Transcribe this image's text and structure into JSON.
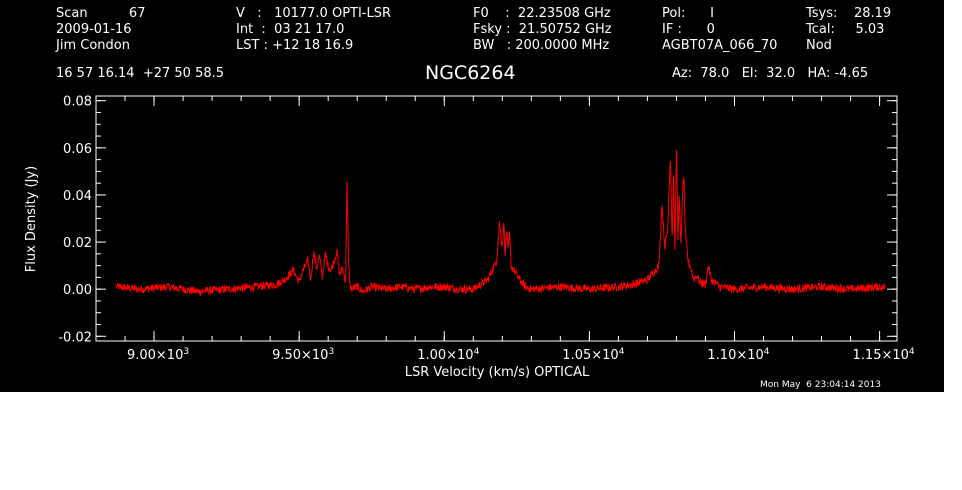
{
  "header": {
    "col1": [
      "Scan          67",
      "2009-01-16",
      "Jim Condon"
    ],
    "col2": [
      "V   :   10177.0 OPTI-LSR",
      "Int  :  03 21 17.0",
      "LST : +12 18 16.9"
    ],
    "col3": [
      "F0    :  22.23508 GHz",
      "Fsky :  21.50752 GHz",
      "BW   : 200.0000 MHz"
    ],
    "col4": [
      "Pol:      I",
      "IF :      0",
      "AGBT07A_066_70"
    ],
    "col5": [
      "Tsys:    28.19",
      "Tcal:     5.03",
      "Nod"
    ],
    "coords": "16 57 16.14  +27 50 58.5",
    "source": "NGC6264",
    "azel": "Az:  78.0   El:  32.0   HA: -4.65"
  },
  "timestamp": "Mon May  6 23:04:14 2013",
  "colors": {
    "background": "#000000",
    "axes": "#ffffff",
    "trace": "#ff0000"
  },
  "chart_data": {
    "type": "line",
    "title": "NGC6264",
    "xlabel": "LSR Velocity (km/s) OPTICAL",
    "ylabel": "Flux Density (Jy)",
    "xlim": [
      8800,
      11560
    ],
    "ylim": [
      -0.022,
      0.082
    ],
    "xticks": [
      {
        "value": 9000,
        "mantissa": "9.00×10",
        "exp": "3"
      },
      {
        "value": 9500,
        "mantissa": "9.50×10",
        "exp": "3"
      },
      {
        "value": 10000,
        "mantissa": "1.00×10",
        "exp": "4"
      },
      {
        "value": 10500,
        "mantissa": "1.05×10",
        "exp": "4"
      },
      {
        "value": 11000,
        "mantissa": "1.10×10",
        "exp": "4"
      },
      {
        "value": 11500,
        "mantissa": "1.15×10",
        "exp": "4"
      }
    ],
    "yticks": [
      {
        "value": -0.02,
        "label": "-0.02"
      },
      {
        "value": 0.0,
        "label": "0.00"
      },
      {
        "value": 0.02,
        "label": "0.02"
      },
      {
        "value": 0.04,
        "label": "0.04"
      },
      {
        "value": 0.06,
        "label": "0.06"
      },
      {
        "value": 0.08,
        "label": "0.08"
      }
    ],
    "grid": false,
    "series": [
      {
        "x": [
          8870,
          8950,
          9050,
          9150,
          9250,
          9350,
          9420,
          9450,
          9480,
          9500,
          9510,
          9530,
          9540,
          9550,
          9560,
          9570,
          9580,
          9590,
          9600,
          9610,
          9620,
          9630,
          9640,
          9650,
          9660,
          9665,
          9670,
          9675,
          9680,
          9700,
          9720,
          9750,
          9800,
          9850,
          9900,
          9950,
          10000,
          10050,
          10100,
          10150,
          10180,
          10190,
          10200,
          10205,
          10210,
          10215,
          10220,
          10225,
          10230,
          10240,
          10250,
          10260,
          10280,
          10300,
          10400,
          10500,
          10600,
          10650,
          10700,
          10740,
          10750,
          10760,
          10770,
          10775,
          10780,
          10785,
          10790,
          10795,
          10800,
          10805,
          10810,
          10815,
          10820,
          10825,
          10830,
          10840,
          10850,
          10860,
          10870,
          10880,
          10900,
          10910,
          10920,
          10950,
          11000,
          11100,
          11200,
          11300,
          11400,
          11500,
          11520
        ],
        "y": [
          0.001,
          0.0,
          0.001,
          -0.001,
          0.0,
          0.001,
          0.002,
          0.004,
          0.008,
          0.003,
          0.007,
          0.012,
          0.004,
          0.016,
          0.009,
          0.014,
          0.005,
          0.015,
          0.01,
          0.008,
          0.012,
          0.016,
          0.006,
          0.009,
          0.003,
          0.047,
          0.012,
          0.002,
          0.0,
          0.001,
          -0.001,
          0.001,
          0.0,
          0.001,
          0.0,
          0.001,
          0.001,
          0.0,
          0.0,
          0.004,
          0.012,
          0.028,
          0.018,
          0.029,
          0.014,
          0.026,
          0.016,
          0.024,
          0.01,
          0.008,
          0.006,
          0.004,
          0.001,
          0.0,
          0.001,
          0.0,
          0.001,
          0.002,
          0.004,
          0.01,
          0.037,
          0.018,
          0.025,
          0.045,
          0.056,
          0.02,
          0.048,
          0.015,
          0.062,
          0.022,
          0.04,
          0.018,
          0.035,
          0.05,
          0.025,
          0.012,
          0.009,
          0.004,
          0.006,
          0.003,
          0.002,
          0.01,
          0.004,
          0.001,
          0.0,
          0.001,
          0.0,
          0.001,
          0.0,
          0.001,
          0.001
        ]
      }
    ]
  }
}
